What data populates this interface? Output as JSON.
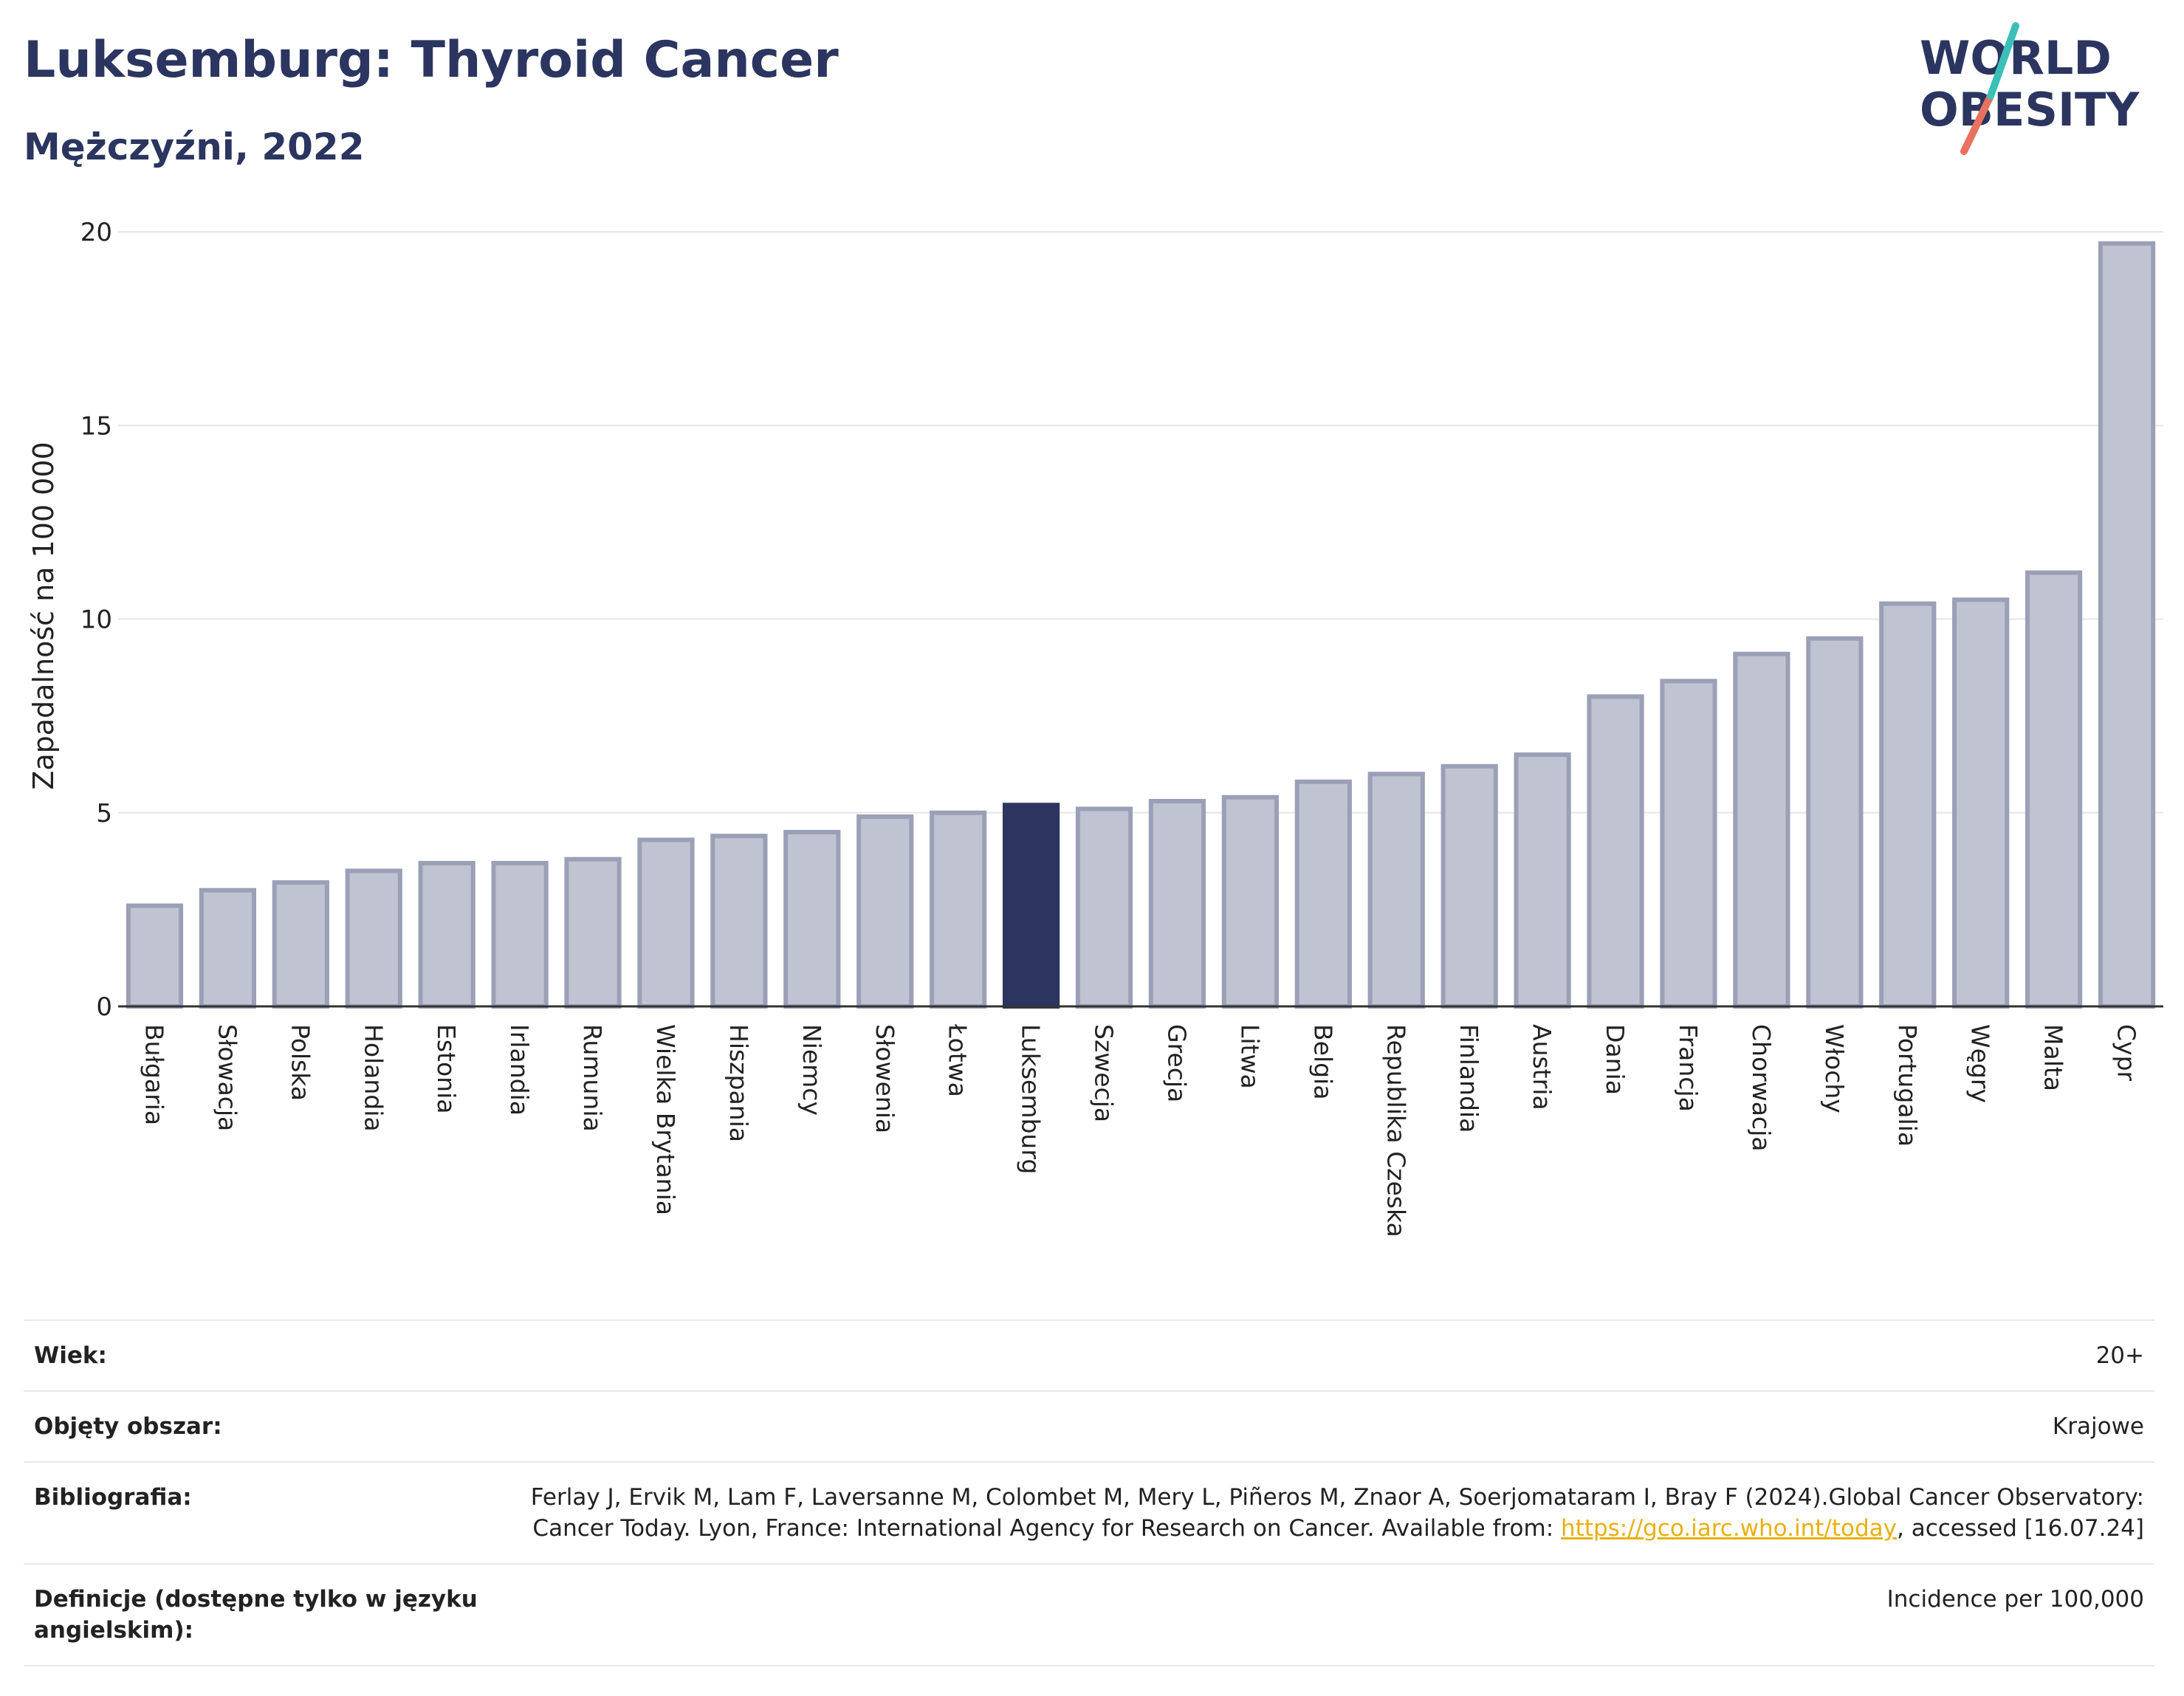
{
  "header": {
    "title": "Luksemburg: Thyroid Cancer",
    "subtitle": "Mężczyźni, 2022"
  },
  "logo": {
    "line1": "WORLD",
    "line2": "OBESITY"
  },
  "chart_data": {
    "type": "bar",
    "ylabel": "Zapadalność na 100 000",
    "xlabel": "",
    "ylim": [
      0,
      20
    ],
    "yticks": [
      0,
      5,
      10,
      15,
      20
    ],
    "grid": true,
    "highlight": "Luksemburg",
    "categories": [
      "Bułgaria",
      "Słowacja",
      "Polska",
      "Holandia",
      "Estonia",
      "Irlandia",
      "Rumunia",
      "Wielka Brytania",
      "Hiszpania",
      "Niemcy",
      "Słowenia",
      "Łotwa",
      "Luksemburg",
      "Szwecja",
      "Grecja",
      "Litwa",
      "Belgia",
      "Republika Czeska",
      "Finlandia",
      "Austria",
      "Dania",
      "Francja",
      "Chorwacja",
      "Włochy",
      "Portugalia",
      "Węgry",
      "Malta",
      "Cypr"
    ],
    "values": [
      2.6,
      3.0,
      3.2,
      3.5,
      3.7,
      3.7,
      3.8,
      4.3,
      4.4,
      4.5,
      4.9,
      5.0,
      5.2,
      5.1,
      5.3,
      5.4,
      5.8,
      6.0,
      6.2,
      6.5,
      8.0,
      8.4,
      9.1,
      9.5,
      10.4,
      10.5,
      11.2,
      19.7
    ],
    "colors": {
      "bar": "#c0c3d1",
      "bar_edge": "#9ba0b7",
      "highlight": "#2b3560",
      "grid": "#e6e6e6",
      "axis": "#333333"
    }
  },
  "info": [
    {
      "label": "Wiek:",
      "value": "20+"
    },
    {
      "label": "Objęty obszar:",
      "value": "Krajowe"
    },
    {
      "label": "Bibliografia:",
      "value_pre": "Ferlay J, Ervik M, Lam F, Laversanne M, Colombet M, Mery L, Piñeros M, Znaor A, Soerjomataram I, Bray F (2024).Global Cancer Observatory: Cancer Today. Lyon, France: International Agency for Research on Cancer. Available from: ",
      "link": "https://gco.iarc.who.int/today",
      "value_post": ", accessed [16.07.24]"
    },
    {
      "label": "Definicje (dostępne tylko w języku angielskim):",
      "value": "Incidence per 100,000"
    }
  ]
}
